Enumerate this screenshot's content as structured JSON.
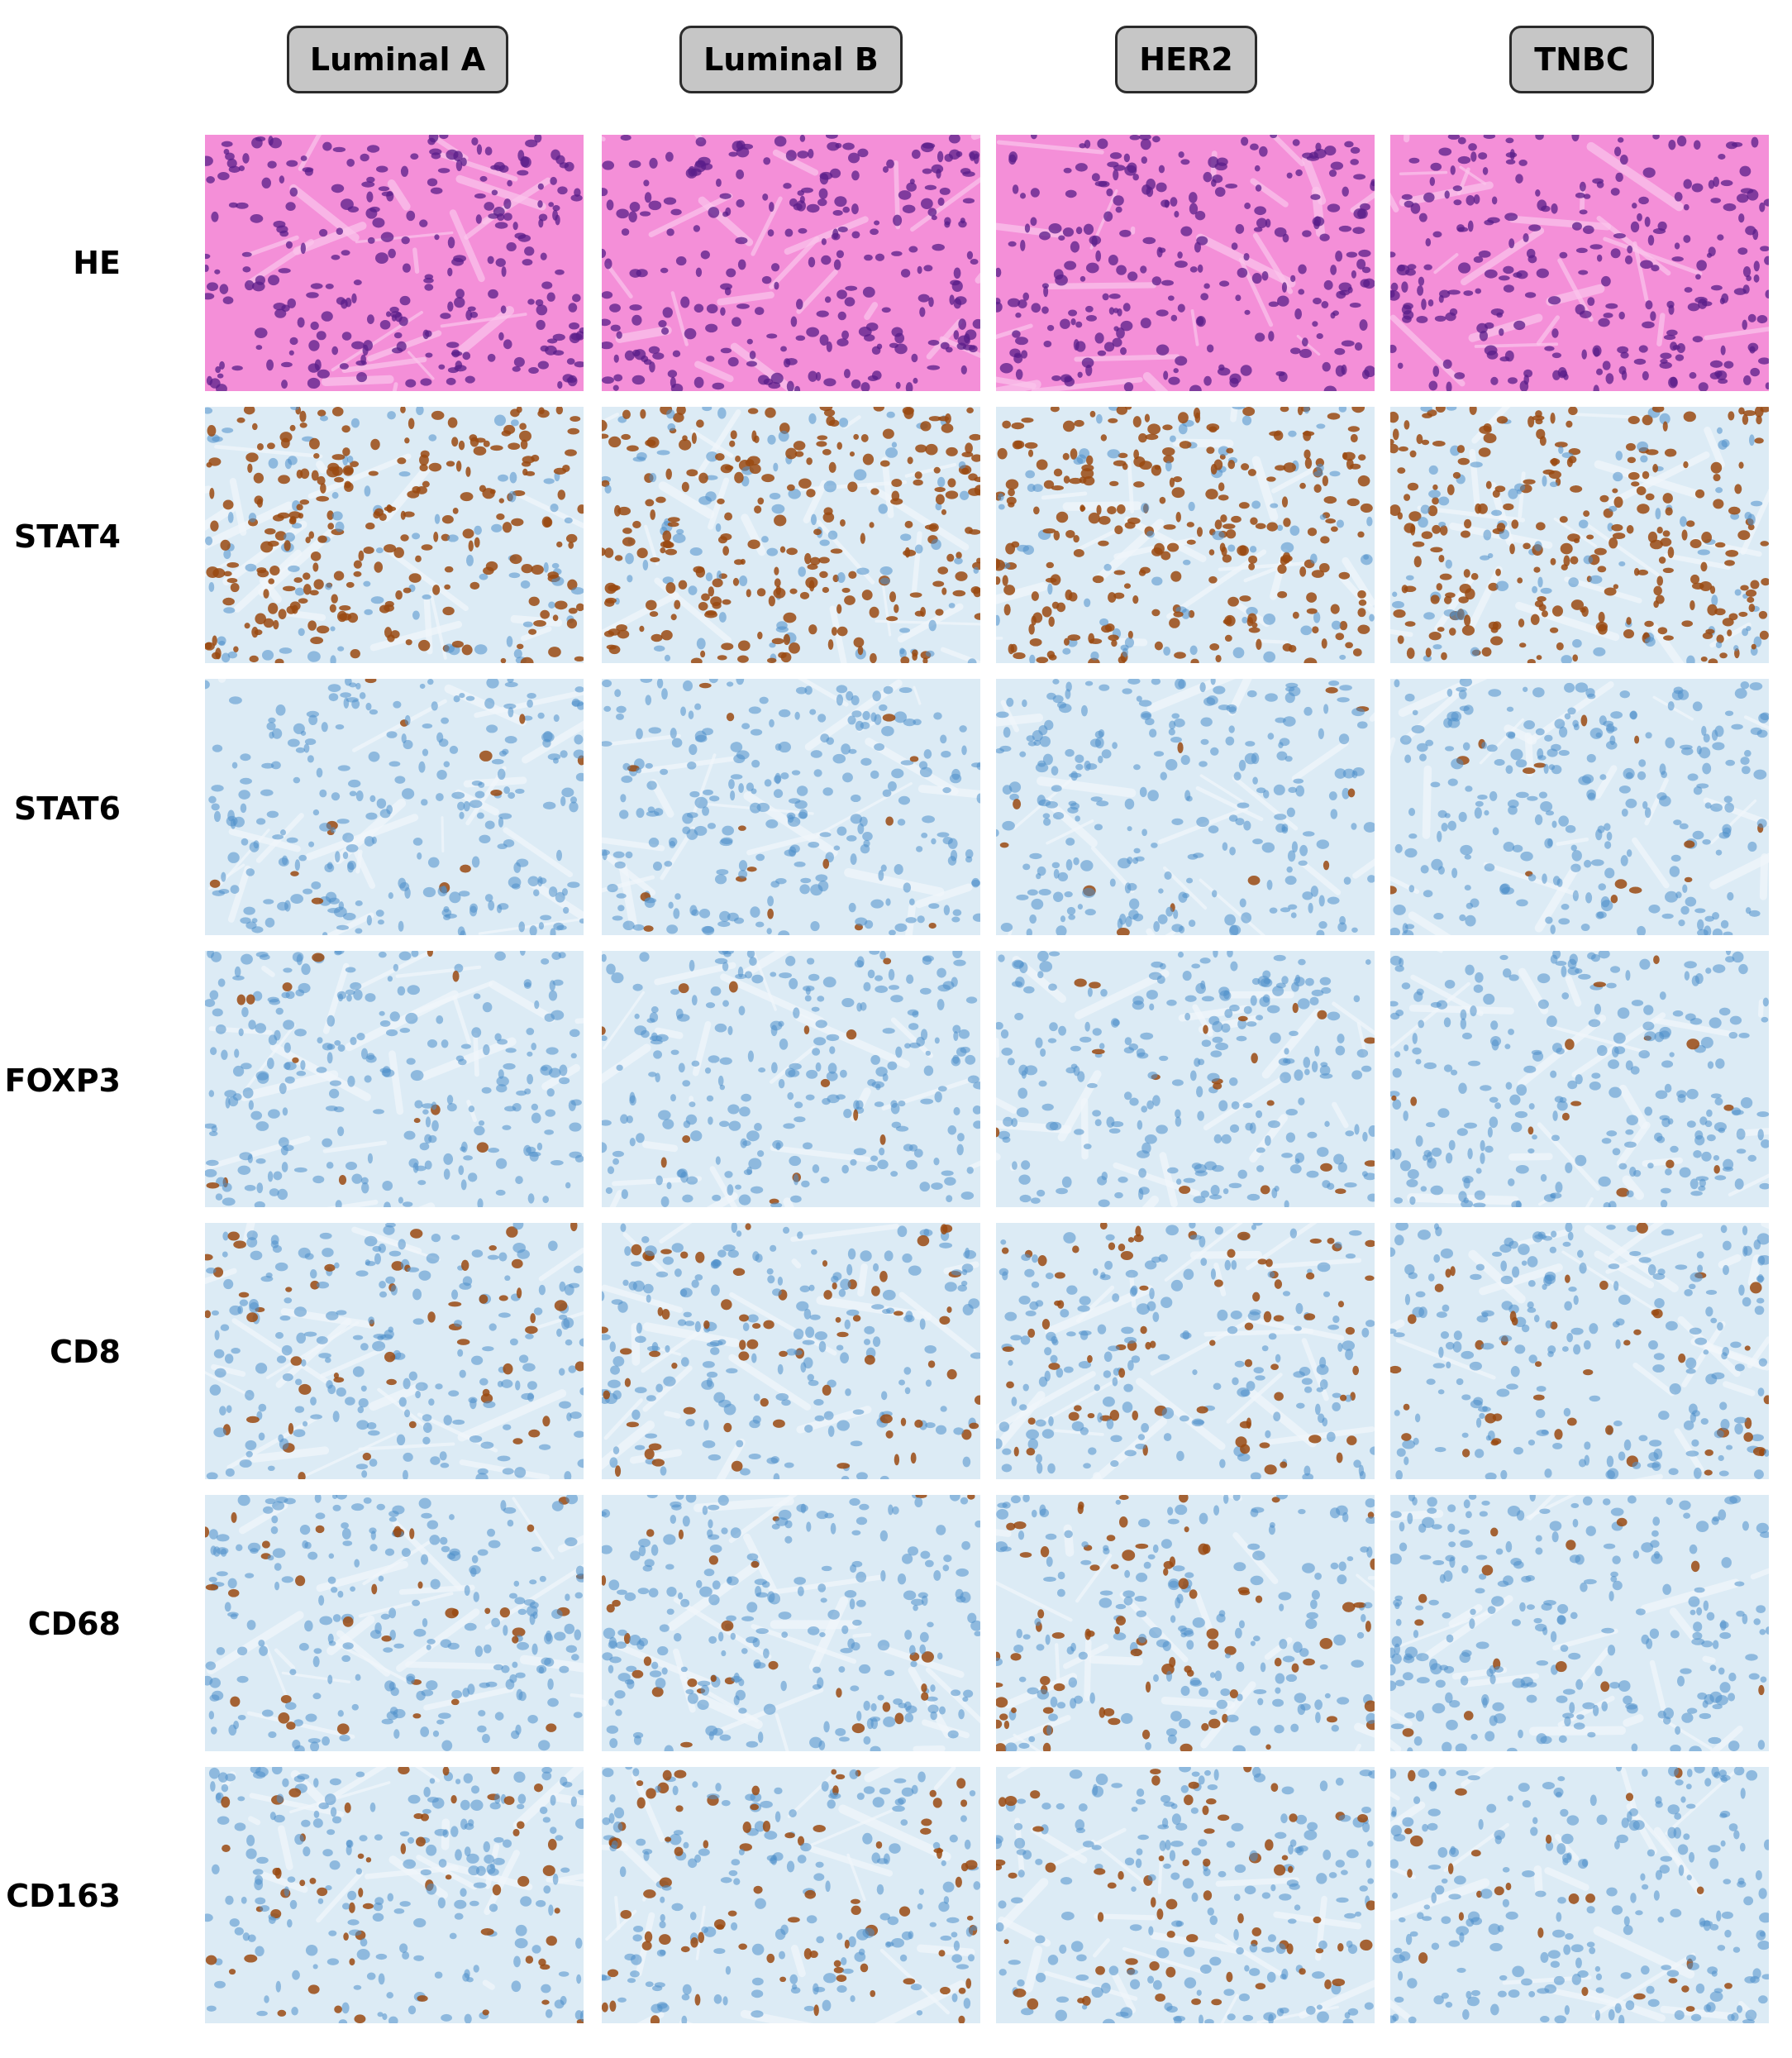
{
  "columns": [
    {
      "label": "Luminal A"
    },
    {
      "label": "Luminal B"
    },
    {
      "label": "HER2"
    },
    {
      "label": "TNBC"
    }
  ],
  "rows": [
    {
      "label": "HE",
      "stain": "he"
    },
    {
      "label": "STAT4",
      "stain": "ihc-nuclear-strong"
    },
    {
      "label": "STAT6",
      "stain": "ihc-weak"
    },
    {
      "label": "FOXP3",
      "stain": "ihc-sparse"
    },
    {
      "label": "CD8",
      "stain": "ihc-lymphocyte"
    },
    {
      "label": "CD68",
      "stain": "ihc-macrophage"
    },
    {
      "label": "CD163",
      "stain": "ihc-macrophage-strong"
    }
  ],
  "colors": {
    "he_background": "#f48fd8",
    "he_nuclei": "#5a1e8a",
    "ihc_background": "#dcebf5",
    "hematoxylin_nuclei": "#4f8fca",
    "dab_brown": "#9a4a12"
  }
}
